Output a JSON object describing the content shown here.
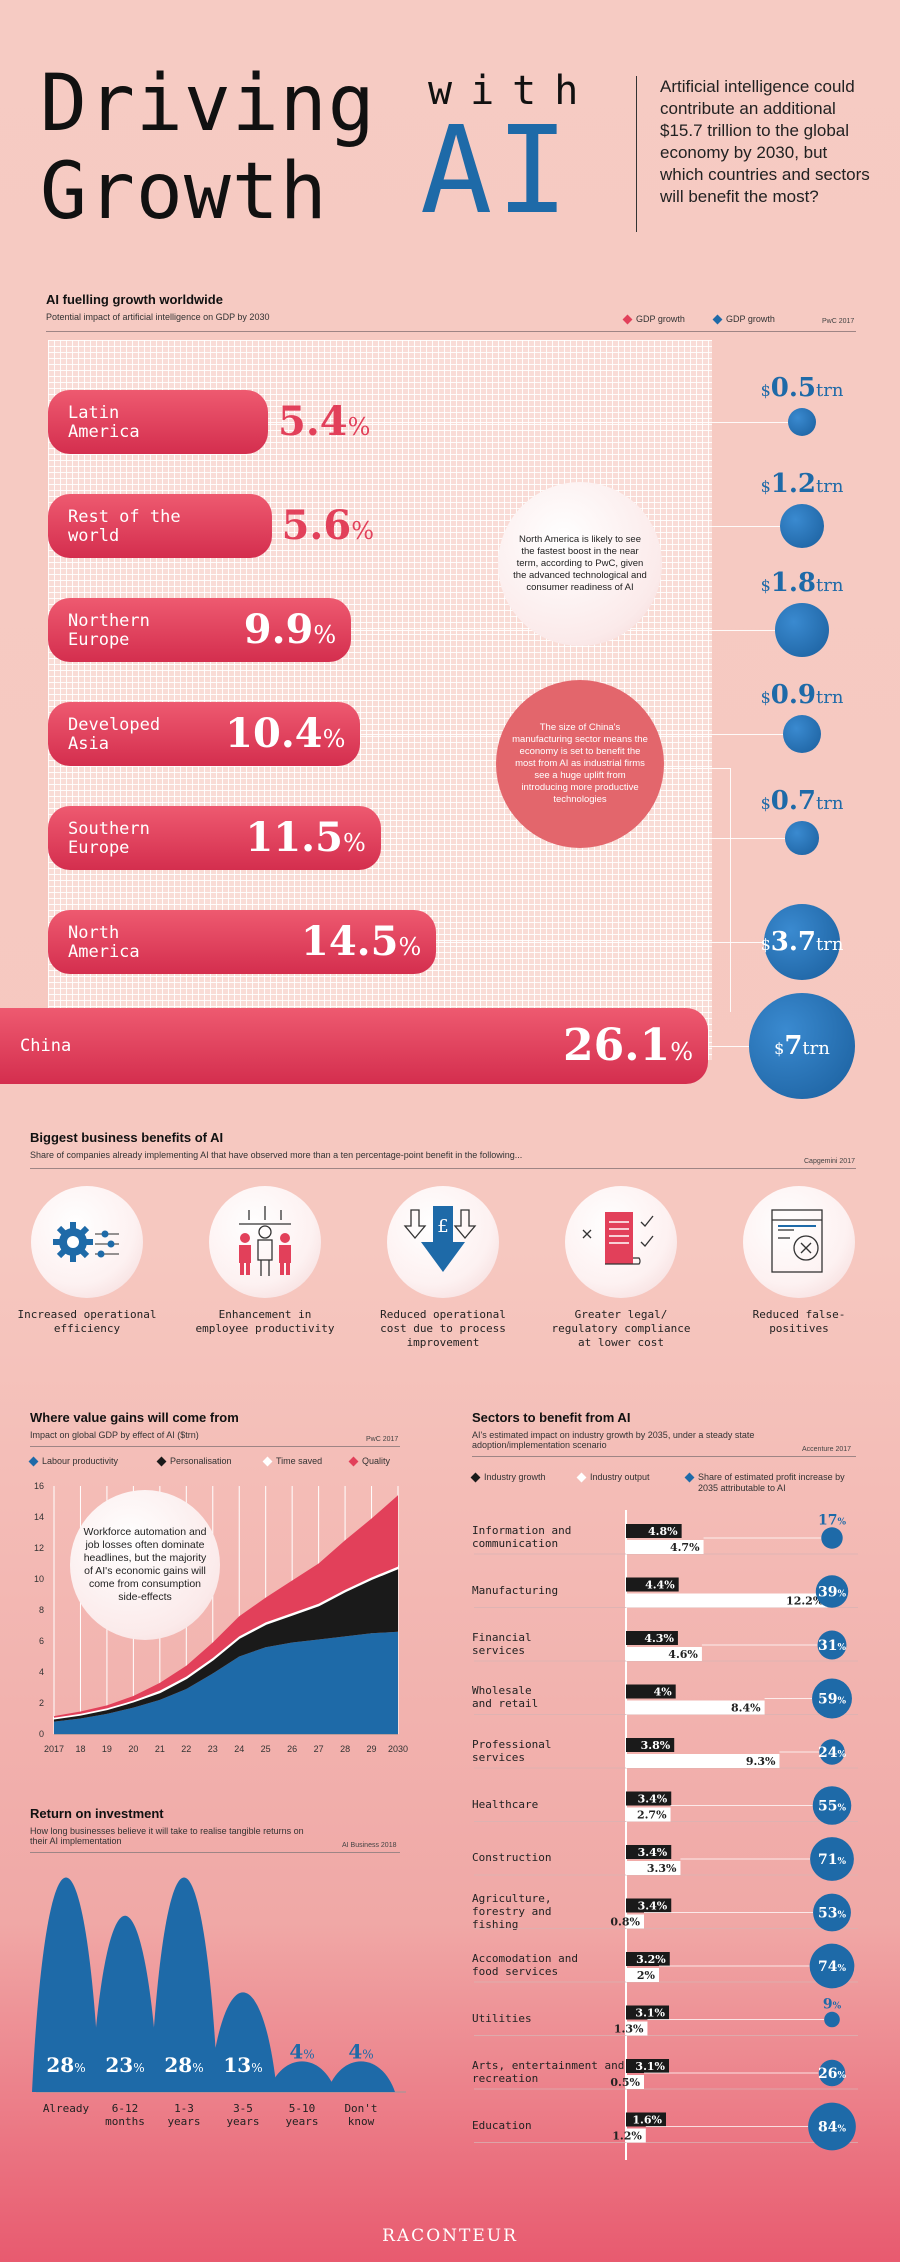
{
  "header": {
    "title_line1": "Driving",
    "title_line2": "Growth",
    "title_with": "with",
    "title_ai": "AI",
    "intro": "Artificial intelligence could contribute an additional $15.7 trillion to the global economy by 2030, but which countries and sectors will benefit the most?"
  },
  "regions": {
    "title": "AI fuelling growth worldwide",
    "subtitle": "Potential impact of artificial intelligence on GDP by 2030",
    "legend_pct": "GDP growth",
    "legend_trn": "GDP growth",
    "source": "PwC 2017",
    "note_na": "North America is likely to see the fastest boost in the near term, according to PwC, given the advanced technological and consumer readiness of AI",
    "note_china": "The size of China's manufacturing sector means the economy is set to benefit the most from AI as industrial firms see a huge uplift from introducing more productive technologies"
  },
  "benefits": {
    "title": "Biggest business benefits of AI",
    "subtitle": "Share of companies already implementing AI that have observed more than a ten percentage-point benefit in the following...",
    "source": "Capgemini 2017",
    "items": [
      {
        "label": "Increased operational efficiency",
        "icon": "gear-icon"
      },
      {
        "label": "Enhancement in employee productivity",
        "icon": "people-icon"
      },
      {
        "label": "Reduced operational cost due to process improvement",
        "icon": "pound-arrow-icon"
      },
      {
        "label": "Greater legal/ regulatory compliance at lower cost",
        "icon": "scroll-icon"
      },
      {
        "label": "Reduced false-positives",
        "icon": "document-x-icon"
      }
    ]
  },
  "value_gains": {
    "title": "Where value gains will come from",
    "subtitle": "Impact on global GDP by effect of AI ($trn)",
    "source": "PwC 2017",
    "note": "Workforce automation and job losses often dominate headlines, but the majority of AI's economic gains will come from consumption side-effects"
  },
  "roi": {
    "title": "Return on investment",
    "subtitle": "How long businesses believe it will take to realise tangible returns on their AI implementation",
    "source": "AI Business 2018"
  },
  "sectors": {
    "title": "Sectors to benefit from AI",
    "subtitle": "AI's estimated impact on industry growth by 2035, under a steady state adoption/implementation scenario",
    "source": "Accenture 2017",
    "legend_growth": "Industry growth",
    "legend_output": "Industry output",
    "legend_profit": "Share of estimated profit increase by 2035 attributable to AI"
  },
  "footer": {
    "brand": "RACONTEUR"
  },
  "colors": {
    "red": "#e2405a",
    "blue": "#1e6aa8",
    "dark": "#1a1a1a"
  },
  "chart_data": [
    {
      "type": "bar",
      "title": "AI fuelling growth worldwide",
      "categories": [
        "Latin America",
        "Rest of the world",
        "Northern Europe",
        "Developed Asia",
        "Southern Europe",
        "North America",
        "China"
      ],
      "series": [
        {
          "name": "GDP growth (%)",
          "values": [
            5.4,
            5.6,
            9.9,
            10.4,
            11.5,
            14.5,
            26.1
          ],
          "labels": [
            "5.4",
            "5.6",
            "9.9",
            "10.4",
            "11.5",
            "14.5",
            "26.1"
          ],
          "unit": "%"
        },
        {
          "name": "GDP growth ($trn)",
          "values": [
            0.5,
            1.2,
            1.8,
            0.9,
            0.7,
            3.7,
            7
          ],
          "labels": [
            "0.5",
            "1.2",
            "1.8",
            "0.9",
            "0.7",
            "3.7",
            "7"
          ],
          "unit": "trn"
        }
      ]
    },
    {
      "type": "area",
      "title": "Where value gains will come from",
      "x": [
        "2017",
        "18",
        "19",
        "20",
        "21",
        "22",
        "23",
        "24",
        "25",
        "26",
        "27",
        "28",
        "29",
        "2030"
      ],
      "ylim": [
        0,
        16
      ],
      "yticks": [
        "0",
        "2",
        "4",
        "6",
        "8",
        "10",
        "12",
        "14",
        "16"
      ],
      "series": [
        {
          "name": "Labour productivity",
          "color": "#1e6aa8",
          "values": [
            0.8,
            1.0,
            1.3,
            1.7,
            2.2,
            2.9,
            3.9,
            5.0,
            5.6,
            5.9,
            6.1,
            6.3,
            6.5,
            6.6
          ]
        },
        {
          "name": "Personalisation",
          "color": "#1a1a1a",
          "values": [
            0.2,
            0.25,
            0.3,
            0.4,
            0.5,
            0.7,
            0.9,
            1.2,
            1.5,
            1.8,
            2.2,
            2.9,
            3.5,
            4.1
          ]
        },
        {
          "name": "Time saved",
          "color": "#ffffff",
          "values": [
            0.05,
            0.05,
            0.05,
            0.05,
            0.1,
            0.1,
            0.1,
            0.1,
            0.1,
            0.1,
            0.1,
            0.1,
            0.1,
            0.1
          ]
        },
        {
          "name": "Quality",
          "color": "#e2405a",
          "values": [
            0.1,
            0.15,
            0.2,
            0.3,
            0.5,
            0.7,
            1.0,
            1.3,
            1.6,
            2.1,
            2.6,
            3.2,
            3.8,
            4.6
          ]
        }
      ]
    },
    {
      "type": "bar",
      "title": "Return on investment",
      "categories": [
        "Already",
        "6-12 months",
        "1-3 years",
        "3-5 years",
        "5-10 years",
        "Don't know"
      ],
      "values": [
        28,
        23,
        28,
        13,
        4,
        4
      ],
      "labels": [
        "28",
        "23",
        "28",
        "13",
        "4",
        "4"
      ],
      "unit": "%"
    },
    {
      "type": "bar",
      "title": "Sectors to benefit from AI",
      "categories": [
        "Information and communication",
        "Manufacturing",
        "Financial services",
        "Wholesale and retail",
        "Professional services",
        "Healthcare",
        "Construction",
        "Agriculture, forestry and fishing",
        "Accomodation and food services",
        "Utilities",
        "Arts, entertainment and recreation",
        "Education"
      ],
      "series": [
        {
          "name": "Industry growth",
          "values": [
            4.8,
            4.4,
            4.3,
            4,
            3.8,
            3.4,
            3.4,
            3.4,
            3.2,
            3.1,
            3.1,
            1.6
          ],
          "labels": [
            "4.8",
            "4.4",
            "4.3",
            "4",
            "3.8",
            "3.4",
            "3.4",
            "3.4",
            "3.2",
            "3.1",
            "3.1",
            "1.6"
          ]
        },
        {
          "name": "Industry output",
          "values": [
            4.7,
            12.2,
            4.6,
            8.4,
            9.3,
            2.7,
            3.3,
            0.8,
            2,
            1.3,
            0.5,
            1.2
          ],
          "labels": [
            "4.7",
            "12.2",
            "4.6",
            "8.4",
            "9.3",
            "2.7",
            "3.3",
            "0.8",
            "2",
            "1.3",
            "0.5",
            "1.2"
          ]
        },
        {
          "name": "Share of estimated profit increase by 2035 attributable to AI",
          "values": [
            17,
            39,
            31,
            59,
            24,
            55,
            71,
            53,
            74,
            9,
            26,
            84
          ],
          "labels": [
            "17",
            "39",
            "31",
            "59",
            "24",
            "55",
            "71",
            "53",
            "74",
            "9",
            "26",
            "84"
          ]
        }
      ],
      "unit": "%"
    }
  ]
}
